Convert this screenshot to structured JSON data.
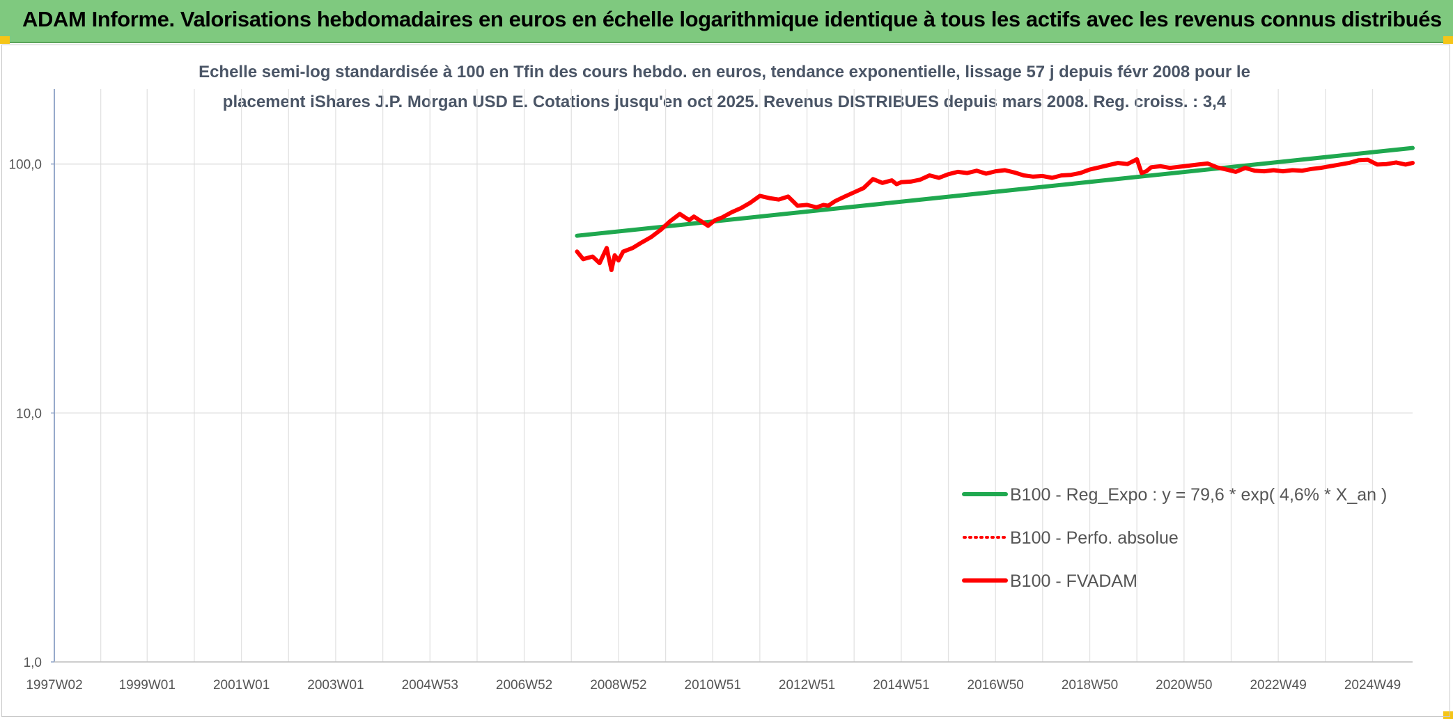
{
  "header": {
    "title": "ADAM Informe. Valorisations hebdomadaires en euros en échelle logarithmique identique à tous les actifs avec les revenus connus distribués"
  },
  "chart_data": {
    "type": "line",
    "title_line1": "Echelle semi-log standardisée à 100 en Tfin des cours hebdo. en euros, tendance exponentielle, lissage 57 j depuis févr 2008 pour le",
    "title_line2": "placement iShares J.P. Morgan USD E. Cotations jusqu'en oct 2025. Revenus DISTRIBUES depuis mars 2008. Reg. croiss. : 3,4",
    "y_scale": "log",
    "ylim": [
      1,
      200
    ],
    "y_ticks": [
      {
        "value": 1,
        "label": "1,0"
      },
      {
        "value": 10,
        "label": "10,0"
      },
      {
        "value": 100,
        "label": "100,0"
      }
    ],
    "xlim": [
      1997.03,
      2025.85
    ],
    "x_ticks": [
      {
        "value": 1997.03,
        "label": "1997W02"
      },
      {
        "value": 1999.0,
        "label": "1999W01"
      },
      {
        "value": 2001.0,
        "label": "2001W01"
      },
      {
        "value": 2003.0,
        "label": "2003W01"
      },
      {
        "value": 2005.0,
        "label": "2004W53"
      },
      {
        "value": 2007.0,
        "label": "2006W52"
      },
      {
        "value": 2009.0,
        "label": "2008W52"
      },
      {
        "value": 2011.0,
        "label": "2010W51"
      },
      {
        "value": 2013.0,
        "label": "2012W51"
      },
      {
        "value": 2015.0,
        "label": "2014W51"
      },
      {
        "value": 2017.0,
        "label": "2016W50"
      },
      {
        "value": 2019.0,
        "label": "2018W50"
      },
      {
        "value": 2021.0,
        "label": "2020W50"
      },
      {
        "value": 2023.0,
        "label": "2022W49"
      },
      {
        "value": 2025.0,
        "label": "2024W49"
      }
    ],
    "grid": true,
    "legend_position": "bottom-right",
    "series": [
      {
        "name": "B100 - Reg_Expo : y = 79,6 * exp( 4,6% *  X_an )",
        "color": "#1fa84f",
        "style": "solid",
        "x": [
          2008.12,
          2025.85
        ],
        "y": [
          51.5,
          116.0
        ]
      },
      {
        "name": "B100 - Perfo. absolue",
        "color": "#ff0000",
        "style": "dotted",
        "x": [],
        "y": []
      },
      {
        "name": "B100 - FVADAM",
        "color": "#ff0000",
        "style": "solid",
        "x": [
          2008.12,
          2008.25,
          2008.45,
          2008.6,
          2008.75,
          2008.85,
          2008.92,
          2009.0,
          2009.1,
          2009.3,
          2009.5,
          2009.7,
          2009.9,
          2010.1,
          2010.3,
          2010.5,
          2010.6,
          2010.75,
          2010.9,
          2011.05,
          2011.2,
          2011.4,
          2011.6,
          2011.8,
          2012.0,
          2012.2,
          2012.4,
          2012.6,
          2012.8,
          2013.0,
          2013.2,
          2013.35,
          2013.45,
          2013.6,
          2013.8,
          2014.0,
          2014.2,
          2014.4,
          2014.6,
          2014.8,
          2014.9,
          2015.0,
          2015.2,
          2015.4,
          2015.6,
          2015.8,
          2016.0,
          2016.2,
          2016.4,
          2016.6,
          2016.8,
          2017.0,
          2017.2,
          2017.4,
          2017.6,
          2017.8,
          2018.0,
          2018.2,
          2018.4,
          2018.6,
          2018.8,
          2019.0,
          2019.2,
          2019.4,
          2019.6,
          2019.8,
          2020.0,
          2020.1,
          2020.2,
          2020.3,
          2020.5,
          2020.7,
          2020.9,
          2021.1,
          2021.3,
          2021.5,
          2021.7,
          2021.9,
          2022.1,
          2022.3,
          2022.5,
          2022.7,
          2022.9,
          2023.1,
          2023.3,
          2023.5,
          2023.7,
          2023.9,
          2024.1,
          2024.3,
          2024.5,
          2024.7,
          2024.9,
          2025.1,
          2025.3,
          2025.5,
          2025.7,
          2025.85
        ],
        "y": [
          44.5,
          41.5,
          42.5,
          40.0,
          46.0,
          37.5,
          43.0,
          41.0,
          44.5,
          46.0,
          48.5,
          51.0,
          54.5,
          59.0,
          63.0,
          59.5,
          61.5,
          59.0,
          56.5,
          59.5,
          61.0,
          64.0,
          66.5,
          70.0,
          74.5,
          73.0,
          72.0,
          74.0,
          68.0,
          68.5,
          67.0,
          68.5,
          68.0,
          71.0,
          74.0,
          77.0,
          80.0,
          87.0,
          84.0,
          86.0,
          83.0,
          84.5,
          85.0,
          86.5,
          90.0,
          88.0,
          91.0,
          93.0,
          92.0,
          94.0,
          91.5,
          93.5,
          94.5,
          92.5,
          90.0,
          89.0,
          89.5,
          88.0,
          90.0,
          90.5,
          92.0,
          95.0,
          97.0,
          99.0,
          101.0,
          100.0,
          104.5,
          92.0,
          93.5,
          97.0,
          98.0,
          96.5,
          97.5,
          98.5,
          99.5,
          100.5,
          97.0,
          95.0,
          93.0,
          96.5,
          94.0,
          93.5,
          94.5,
          93.5,
          94.5,
          94.0,
          95.5,
          96.5,
          98.0,
          99.5,
          101.0,
          103.5,
          104.0,
          99.5,
          100.0,
          101.5,
          99.5,
          101.0
        ]
      }
    ]
  }
}
